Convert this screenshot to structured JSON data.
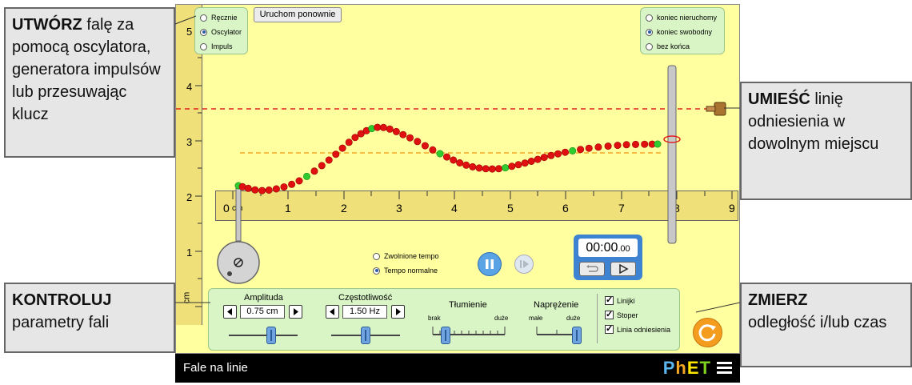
{
  "callouts": {
    "create": {
      "bold": "UTWÓRZ",
      "rest": " falę za pomocą oscylatora, generatora impulsów lub przesuwając klucz"
    },
    "place": {
      "bold": "UMIEŚĆ",
      "rest": " linię odniesienia w dowolnym miejscu"
    },
    "control": {
      "bold": "KONTROLUJ",
      "rest": " parametry fali"
    },
    "measure": {
      "bold": "ZMIERZ",
      "rest": " odległość i/lub czas"
    }
  },
  "mode_panel": {
    "options": [
      {
        "label": "Ręcznie",
        "selected": false
      },
      {
        "label": "Oscylator",
        "selected": true
      },
      {
        "label": "Impuls",
        "selected": false
      }
    ]
  },
  "restart_button": "Uruchom ponownie",
  "end_panel": {
    "options": [
      {
        "label": "koniec nieruchomy",
        "selected": false
      },
      {
        "label": "koniec swobodny",
        "selected": true
      },
      {
        "label": "bez końca",
        "selected": false
      }
    ]
  },
  "vertical_ruler": {
    "ticks": [
      "5",
      "4",
      "3",
      "2",
      "1"
    ],
    "unit": "cm"
  },
  "horizontal_ruler": {
    "ticks": [
      "0",
      "1",
      "2",
      "3",
      "4",
      "5",
      "6",
      "7",
      "8",
      "9"
    ],
    "unit": "cm"
  },
  "speed": {
    "options": [
      {
        "label": "Zwolnione tempo",
        "selected": false
      },
      {
        "label": "Tempo normalne",
        "selected": true
      }
    ]
  },
  "stopwatch": {
    "time_main": "00:00",
    "time_fraction": ".00"
  },
  "controls": {
    "amplitude": {
      "label": "Amplituda",
      "value": "0.75 cm",
      "level": 0.5
    },
    "frequency": {
      "label": "Częstotliwość",
      "value": "1.50 Hz",
      "level": 0.5
    },
    "damping": {
      "label": "Tłumienie",
      "min": "brak",
      "max": "duże",
      "level": 0.1
    },
    "tension": {
      "label": "Naprężenie",
      "min": "małe",
      "max": "duże",
      "level": 1.0
    },
    "checkboxes": [
      {
        "label": "Linijki",
        "checked": true
      },
      {
        "label": "Stoper",
        "checked": true
      },
      {
        "label": "Linia odniesienia",
        "checked": true
      }
    ]
  },
  "navbar": {
    "title": "Fale na linie",
    "logo": "PhET"
  },
  "colors": {
    "bead_red": "#e01010",
    "bead_green": "#2ecc2e",
    "reference_line": "#e02020",
    "baseline": "#f5a623"
  }
}
